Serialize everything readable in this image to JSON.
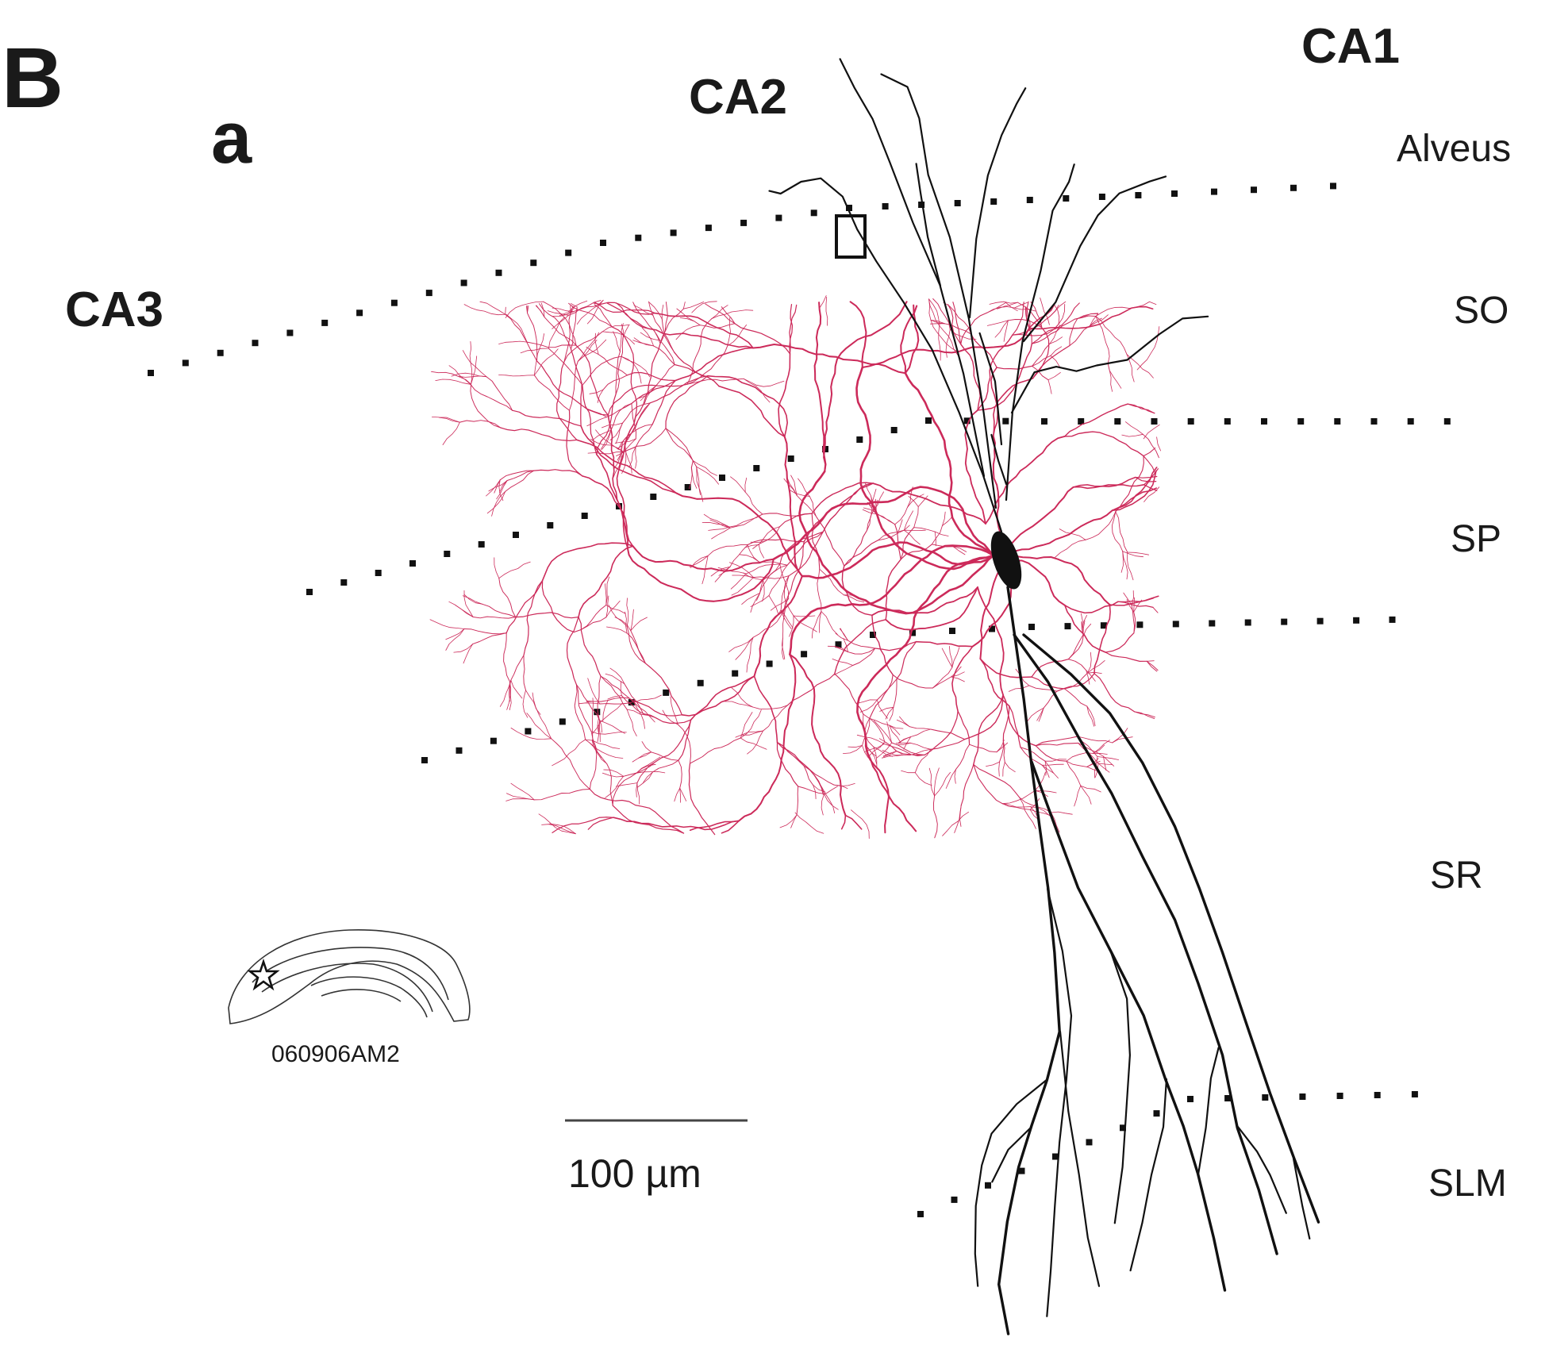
{
  "figure": {
    "panel_letter": "B",
    "subpanel_letter": "a",
    "regions": {
      "ca1": "CA1",
      "ca2": "CA2",
      "ca3": "CA3"
    },
    "layers": {
      "alveus": "Alveus",
      "so": "SO",
      "sp": "SP",
      "sr": "SR",
      "slm": "SLM"
    },
    "cell_id": "060906AM2",
    "scale_bar": {
      "label": "100 µm",
      "length_um": 100
    }
  },
  "colors": {
    "axon": "#cc2a5a",
    "dendrite": "#111111",
    "layer_dots": "#111111",
    "text": "#1a1a1a"
  }
}
